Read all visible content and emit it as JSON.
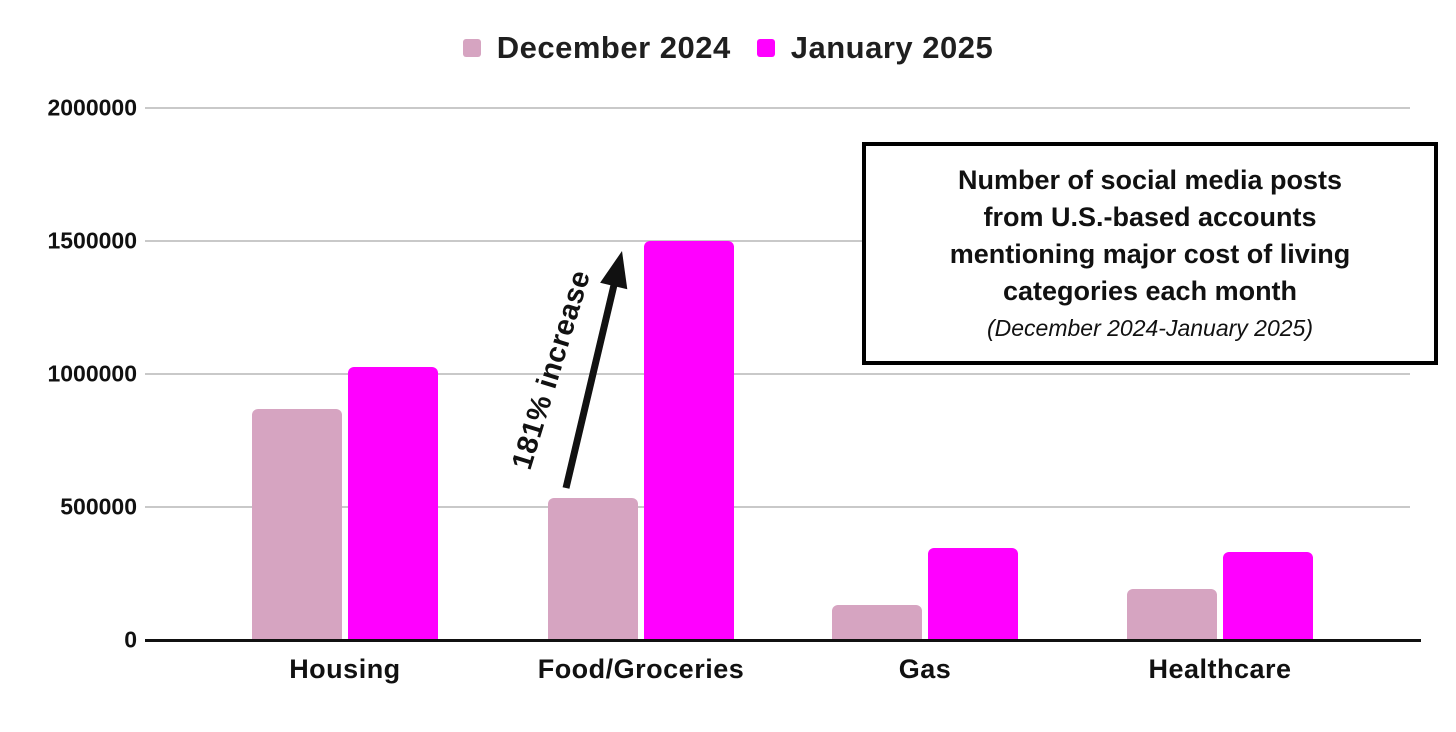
{
  "chart_data": {
    "type": "bar",
    "title": "Number of social media posts from U.S.-based accounts mentioning major cost of living categories each month",
    "subtitle": "(December 2024-January 2025)",
    "categories": [
      "Housing",
      "Food/Groceries",
      "Gas",
      "Healthcare"
    ],
    "series": [
      {
        "name": "December 2024",
        "color": "#d6a4c1",
        "values": [
          870000,
          533000,
          130000,
          190000
        ]
      },
      {
        "name": "January 2025",
        "color": "#ff00ff",
        "values": [
          1025000,
          1500000,
          345000,
          330000
        ]
      }
    ],
    "xlabel": "",
    "ylabel": "",
    "ylim": [
      0,
      2000000
    ],
    "yticks": [
      0,
      500000,
      1000000,
      1500000,
      2000000
    ],
    "grid": true,
    "legend_position": "top",
    "group_centers_pct": [
      15.67,
      38.87,
      61.13,
      84.25
    ]
  },
  "annotation": {
    "arrow_label": "181% increase",
    "box": {
      "title_lines": [
        "Number of social media posts",
        "from U.S.-based accounts",
        "mentioning major cost of living",
        "categories each month"
      ],
      "subtitle": "(December 2024-January 2025)"
    }
  },
  "colors": {
    "december_bar": "#d6a4c1",
    "january_bar": "#ff00ff",
    "gridline": "#c9c9c9",
    "axis": "#111111",
    "text": "#111111",
    "background": "#ffffff"
  }
}
